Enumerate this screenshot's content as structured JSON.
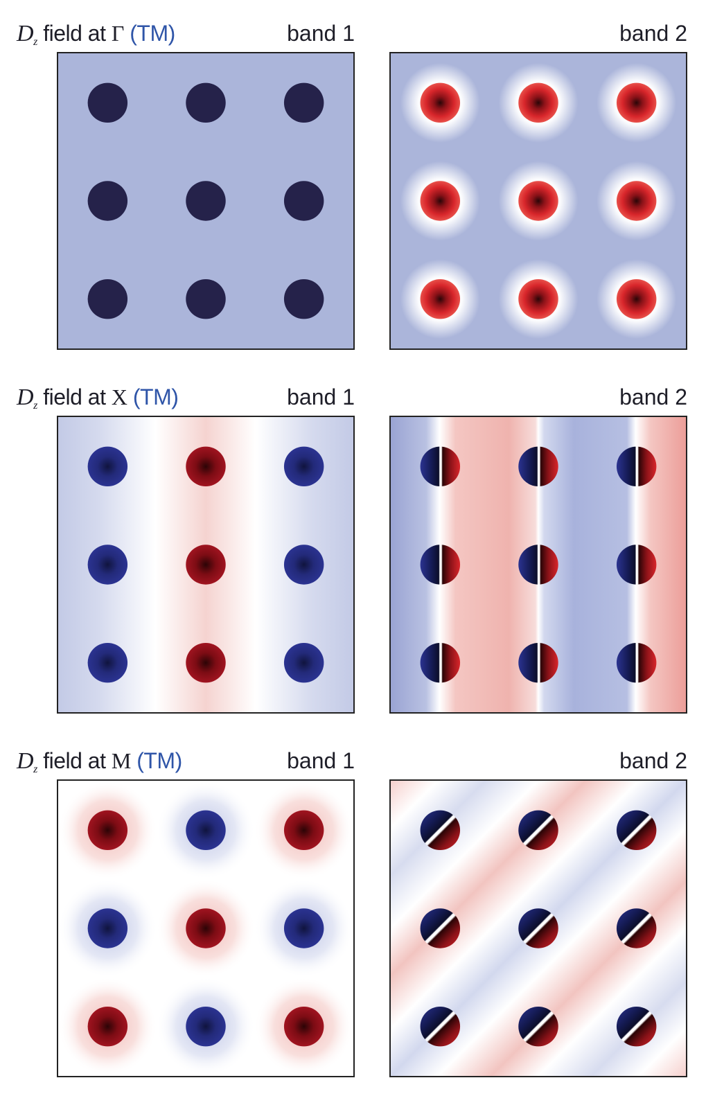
{
  "rows": [
    {
      "title": {
        "field": "D",
        "sub": "z",
        "mid": " field at ",
        "point": "Γ",
        "mode": "(TM)"
      },
      "band1": {
        "label": "band 1"
      },
      "band2": {
        "label": "band 2"
      }
    },
    {
      "title": {
        "field": "D",
        "sub": "z",
        "mid": " field at ",
        "point": "X",
        "mode": "(TM)"
      },
      "band1": {
        "label": "band 1"
      },
      "band2": {
        "label": "band 2"
      }
    },
    {
      "title": {
        "field": "D",
        "sub": "z",
        "mid": " field at ",
        "point": "M",
        "mode": "(TM)"
      },
      "band1": {
        "label": "band 1"
      },
      "band2": {
        "label": "band 2"
      }
    }
  ],
  "colors": {
    "dark_navy": "#25224a",
    "blue": "#2b3391",
    "red": "#a01420",
    "bright_red": "#d8262b",
    "pale_blue": "#abb5da",
    "pale_red": "#f0b9b6",
    "frame": "#222222"
  }
}
